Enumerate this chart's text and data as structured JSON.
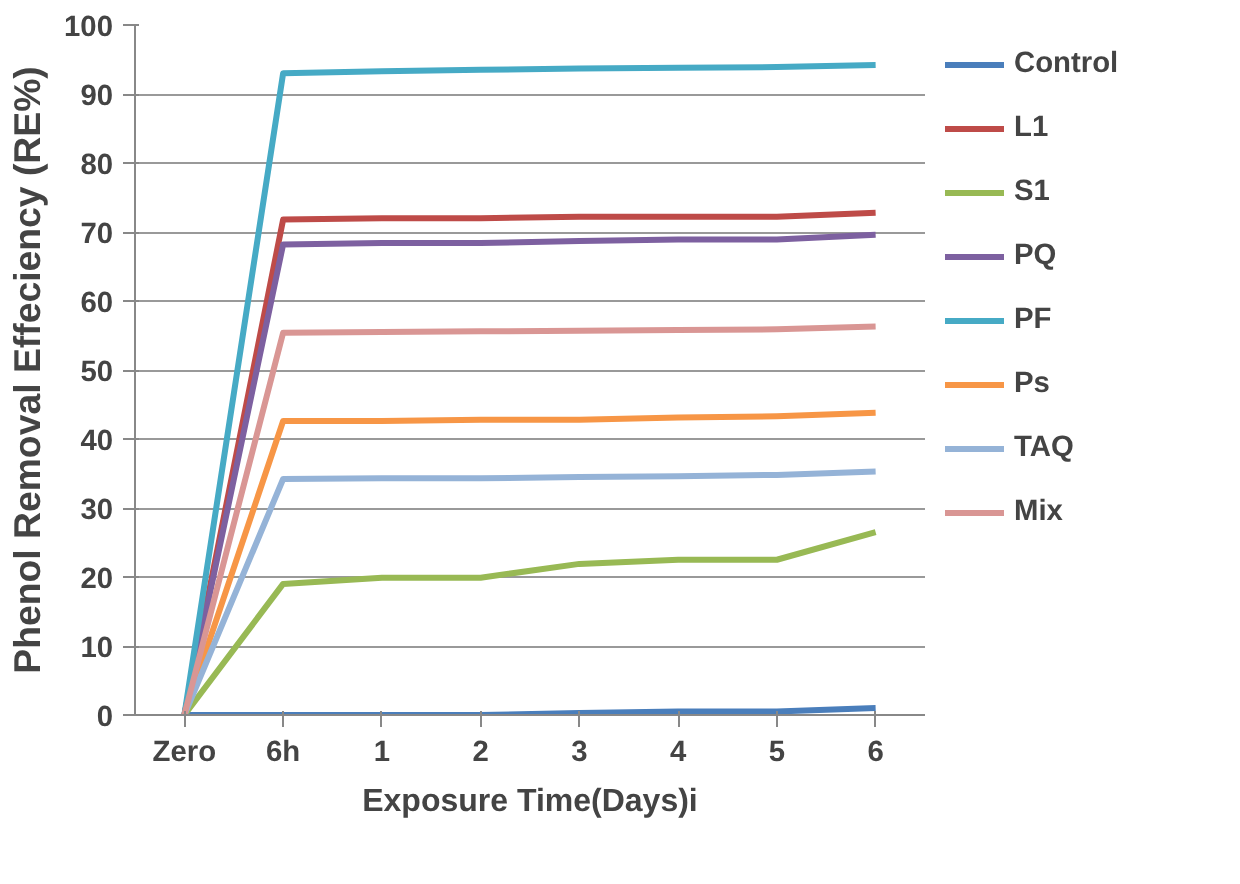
{
  "chart_data": {
    "type": "line",
    "xlabel": "Exposure Time(Days)i",
    "ylabel": "Phenol Removal Effeciency (RE%)",
    "categories": [
      "Zero",
      "6h",
      "1",
      "2",
      "3",
      "4",
      "5",
      "6"
    ],
    "ylim": [
      0,
      100
    ],
    "yticks": [
      0,
      10,
      20,
      30,
      40,
      50,
      60,
      70,
      80,
      90,
      100
    ],
    "grid": "y",
    "legend": "right",
    "series": [
      {
        "name": "Control",
        "color": "#4a7ebb",
        "values": [
          0,
          0,
          0,
          0,
          0.3,
          0.5,
          0.5,
          1
        ]
      },
      {
        "name": "L1",
        "color": "#be4b48",
        "values": [
          0,
          71.8,
          72,
          72,
          72.2,
          72.2,
          72.2,
          72.8
        ]
      },
      {
        "name": "S1",
        "color": "#98b954",
        "values": [
          0,
          19,
          19.9,
          19.9,
          21.9,
          22.5,
          22.5,
          26.5
        ]
      },
      {
        "name": "PQ",
        "color": "#7d60a0",
        "values": [
          0,
          68.2,
          68.4,
          68.4,
          68.7,
          68.9,
          68.9,
          69.6
        ]
      },
      {
        "name": "PF",
        "color": "#46aac5",
        "values": [
          0,
          93,
          93.3,
          93.5,
          93.7,
          93.8,
          93.9,
          94.2
        ]
      },
      {
        "name": "Ps",
        "color": "#f79646",
        "values": [
          0,
          42.6,
          42.6,
          42.8,
          42.8,
          43.1,
          43.3,
          43.8
        ]
      },
      {
        "name": "TAQ",
        "color": "#95b3d7",
        "values": [
          0,
          34.2,
          34.3,
          34.3,
          34.5,
          34.6,
          34.8,
          35.3
        ]
      },
      {
        "name": "Mix",
        "color": "#d99694",
        "values": [
          0,
          55.4,
          55.5,
          55.6,
          55.7,
          55.8,
          55.9,
          56.3
        ]
      }
    ]
  }
}
